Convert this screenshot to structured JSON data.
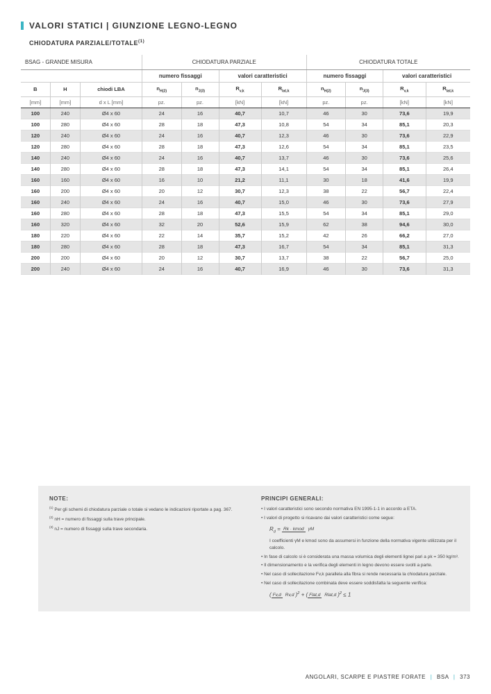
{
  "title": "VALORI STATICI | GIUNZIONE LEGNO-LEGNO",
  "subtitle": "CHIODATURA PARZIALE/TOTALE",
  "subtitle_sup": "(1)",
  "table": {
    "group_headers": [
      "BSAG - GRANDE MISURA",
      "CHIODATURA PARZIALE",
      "CHIODATURA TOTALE"
    ],
    "sub_headers_left": "",
    "sub_headers": [
      "numero fissaggi",
      "valori caratteristici",
      "numero fissaggi",
      "valori caratteristici"
    ],
    "col_headers": [
      "B",
      "H",
      "chiodi LBA",
      "n",
      "n",
      "R",
      "R",
      "n",
      "n",
      "R",
      "R"
    ],
    "col_sup": [
      "",
      "",
      "",
      "H(2)",
      "J(3)",
      "v,k",
      "lat,k",
      "H(2)",
      "J(3)",
      "v,k",
      "lat,k"
    ],
    "units": [
      "[mm]",
      "[mm]",
      "d x L [mm]",
      "pz.",
      "pz.",
      "[kN]",
      "[kN]",
      "pz.",
      "pz.",
      "[kN]",
      "[kN]"
    ],
    "rows": [
      {
        "shaded": true,
        "cells": [
          "100",
          "240",
          "Ø4 x 60",
          "24",
          "16",
          "40,7",
          "10,7",
          "46",
          "30",
          "73,6",
          "19,9"
        ]
      },
      {
        "shaded": false,
        "cells": [
          "100",
          "280",
          "Ø4 x 60",
          "28",
          "18",
          "47,3",
          "10,8",
          "54",
          "34",
          "85,1",
          "20,3"
        ]
      },
      {
        "shaded": true,
        "cells": [
          "120",
          "240",
          "Ø4 x 60",
          "24",
          "16",
          "40,7",
          "12,3",
          "46",
          "30",
          "73,6",
          "22,9"
        ]
      },
      {
        "shaded": false,
        "cells": [
          "120",
          "280",
          "Ø4 x 60",
          "28",
          "18",
          "47,3",
          "12,6",
          "54",
          "34",
          "85,1",
          "23,5"
        ]
      },
      {
        "shaded": true,
        "cells": [
          "140",
          "240",
          "Ø4 x 60",
          "24",
          "16",
          "40,7",
          "13,7",
          "46",
          "30",
          "73,6",
          "25,6"
        ]
      },
      {
        "shaded": false,
        "cells": [
          "140",
          "280",
          "Ø4 x 60",
          "28",
          "18",
          "47,3",
          "14,1",
          "54",
          "34",
          "85,1",
          "26,4"
        ]
      },
      {
        "shaded": true,
        "cells": [
          "160",
          "160",
          "Ø4 x 60",
          "16",
          "10",
          "21,2",
          "11,1",
          "30",
          "18",
          "41,6",
          "19,9"
        ]
      },
      {
        "shaded": false,
        "cells": [
          "160",
          "200",
          "Ø4 x 60",
          "20",
          "12",
          "30,7",
          "12,3",
          "38",
          "22",
          "56,7",
          "22,4"
        ]
      },
      {
        "shaded": true,
        "cells": [
          "160",
          "240",
          "Ø4 x 60",
          "24",
          "16",
          "40,7",
          "15,0",
          "46",
          "30",
          "73,6",
          "27,9"
        ]
      },
      {
        "shaded": false,
        "cells": [
          "160",
          "280",
          "Ø4 x 60",
          "28",
          "18",
          "47,3",
          "15,5",
          "54",
          "34",
          "85,1",
          "29,0"
        ]
      },
      {
        "shaded": true,
        "cells": [
          "160",
          "320",
          "Ø4 x 60",
          "32",
          "20",
          "52,6",
          "15,9",
          "62",
          "38",
          "94,6",
          "30,0"
        ]
      },
      {
        "shaded": false,
        "cells": [
          "180",
          "220",
          "Ø4 x 60",
          "22",
          "14",
          "35,7",
          "15,2",
          "42",
          "26",
          "66,2",
          "27,0"
        ]
      },
      {
        "shaded": true,
        "cells": [
          "180",
          "280",
          "Ø4 x 60",
          "28",
          "18",
          "47,3",
          "16,7",
          "54",
          "34",
          "85,1",
          "31,3"
        ]
      },
      {
        "shaded": false,
        "cells": [
          "200",
          "200",
          "Ø4 x 60",
          "20",
          "12",
          "30,7",
          "13,7",
          "38",
          "22",
          "56,7",
          "25,0"
        ]
      },
      {
        "shaded": true,
        "cells": [
          "200",
          "240",
          "Ø4 x 60",
          "24",
          "16",
          "40,7",
          "16,9",
          "46",
          "30",
          "73,6",
          "31,3"
        ]
      }
    ],
    "bold_cols": [
      0,
      5,
      9
    ]
  },
  "notes": {
    "left": {
      "heading": "NOTE:",
      "items": [
        {
          "sup": "(1)",
          "text": "Per gli schemi di chiodatura parziale o totale si vedano le indicazioni riportate a pag. 367."
        },
        {
          "sup": "(2)",
          "text": "nH = numero di fissaggi sulla trave principale."
        },
        {
          "sup": "(3)",
          "text": "nJ = numero di fissaggi sulla trave secondaria."
        }
      ]
    },
    "right": {
      "heading": "PRINCIPI GENERALI:",
      "bullets_top": [
        "I valori caratteristici sono secondo normativa EN 1995-1-1 in accordo a ETA.",
        "I valori di progetto si ricavano dai valori caratteristici come segue:"
      ],
      "formula1_lhs": "R",
      "formula1_lhs_sub": "d",
      "formula1_num": "Rk · kmod",
      "formula1_den": "γM",
      "mid_text": "I coefficienti γM e kmod sono da assumersi in funzione della normativa vigente utilizzata per il calcolo.",
      "bullets_bottom": [
        "In fase di calcolo si è considerata una massa volumica degli elementi lignei pari a ρk = 350 kg/m³.",
        "Il dimensionamento e la verifica degli elementi in legno devono essere svolti a parte.",
        "Nel caso di sollecitazione Fv,k parallela alla fibra si rende necessaria la chiodatura parziale.",
        "Nel caso di sollecitazione combinata deve essere soddisfatta la seguente verifica:"
      ],
      "formula2_frac1_num": "Fv,d",
      "formula2_frac1_den": "Rv,d",
      "formula2_frac2_num": "Flat,d",
      "formula2_frac2_den": "Rlat,d",
      "formula2_tail": "≤  1"
    }
  },
  "footer": {
    "left": "ANGOLARI, SCARPE E PIASTRE FORATE",
    "mid": "BSA",
    "page": "373"
  },
  "colors": {
    "accent": "#3bb5c4",
    "shaded_row": "#e5e5e5",
    "notes_bg": "#ececec"
  }
}
